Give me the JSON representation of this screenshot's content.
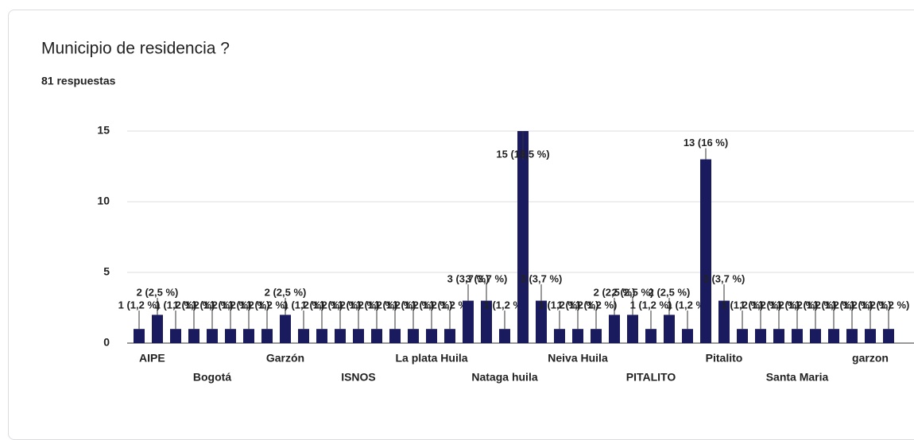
{
  "chart_data": {
    "type": "bar",
    "title": "Municipio de residencia ?",
    "subtitle": "81 respuestas",
    "categories": [
      "AIPE",
      null,
      null,
      null,
      "Bogotá",
      null,
      null,
      null,
      "Garzón",
      null,
      null,
      null,
      "ISNOS",
      null,
      null,
      null,
      "La plata Huila",
      null,
      null,
      null,
      "Nataga huila",
      null,
      null,
      null,
      "Neiva Huila",
      null,
      null,
      null,
      "PITALITO",
      null,
      null,
      null,
      "Pitalito",
      null,
      null,
      null,
      "Santa Maria",
      null,
      null,
      null,
      "garzon",
      null
    ],
    "values": [
      1,
      2,
      1,
      1,
      1,
      1,
      1,
      1,
      2,
      1,
      1,
      1,
      1,
      1,
      1,
      1,
      1,
      1,
      3,
      3,
      1,
      15,
      3,
      1,
      1,
      1,
      2,
      2,
      1,
      2,
      1,
      13,
      3,
      1,
      1,
      1,
      1,
      1,
      1,
      1,
      1,
      1
    ],
    "value_labels": [
      "1 (1,2 %)",
      "2 (2,5 %)",
      "1 (1,2 %)",
      "1 (1,2 %)",
      "1 (1,2 %)",
      "1 (1,2 %)",
      "1 (1,2 %)",
      "1 (1,2 %)",
      "2 (2,5 %)",
      "1 (1,2 %)",
      "1 (1,2 %)",
      "1 (1,2 %)",
      "1 (1,2 %)",
      "1 (1,2 %)",
      "1 (1,2 %)",
      "1 (1,2 %)",
      "1 (1,2 %)",
      "1 (1,2 %)",
      "3 (3,7 %)",
      "3 (3,7 %)",
      "1 (1,2 %)",
      "15 (18,5 %)",
      "3 (3,7 %)",
      "1 (1,2 %)",
      "1 (1,2 %)",
      "1 (1,2 %)",
      "2 (2,5 %)",
      "2 (2,5 %)",
      "1 (1,2 %)",
      "2 (2,5 %)",
      "1 (1,2 %)",
      "13 (16 %)",
      "3 (3,7 %)",
      "1 (1,2 %)",
      "1 (1,2 %)",
      "1 (1,2 %)",
      "1 (1,2 %)",
      "1 (1,2 %)",
      "1 (1,2 %)",
      "1 (1,2 %)",
      "1 (1,2 %)",
      "1 (1,2 %)"
    ],
    "color": "#1a1a5e",
    "ylim": [
      0,
      15
    ],
    "yticks": [
      0,
      5,
      10,
      15
    ],
    "grid": true
  }
}
